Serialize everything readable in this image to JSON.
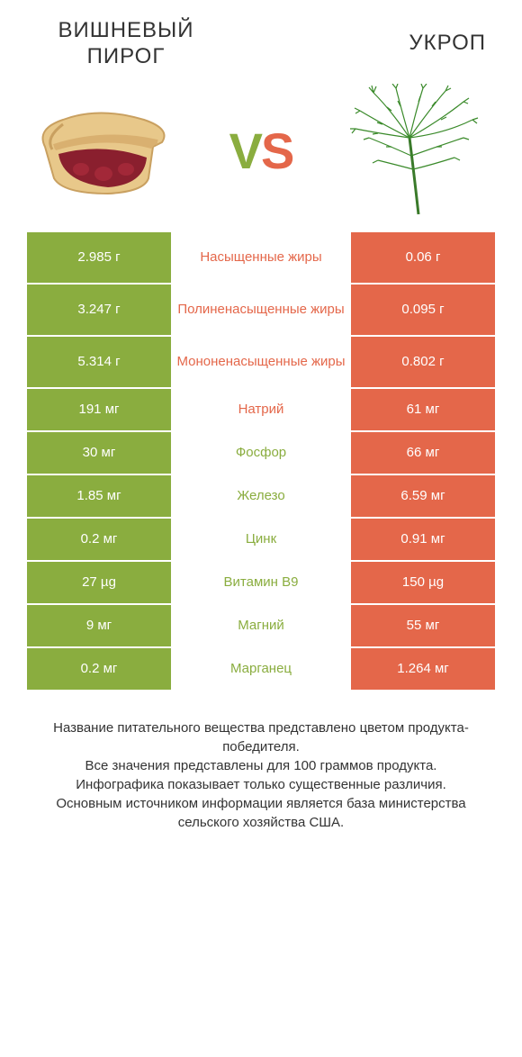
{
  "colors": {
    "left_bg": "#8aad3f",
    "right_bg": "#e4674a",
    "mid_left": "#e4674a",
    "mid_right": "#8aad3f",
    "text": "#333333",
    "white": "#ffffff"
  },
  "header": {
    "left": "ВИШНЕВЫЙ ПИРОГ",
    "right": "УКРОП",
    "vs_v": "V",
    "vs_s": "S"
  },
  "rows": [
    {
      "left": "2.985 г",
      "label": "Насыщенные жиры",
      "right": "0.06 г",
      "winner": "left",
      "tall": true
    },
    {
      "left": "3.247 г",
      "label": "Полиненасыщенные жиры",
      "right": "0.095 г",
      "winner": "left",
      "tall": true
    },
    {
      "left": "5.314 г",
      "label": "Мононенасыщенные жиры",
      "right": "0.802 г",
      "winner": "left",
      "tall": true
    },
    {
      "left": "191 мг",
      "label": "Натрий",
      "right": "61 мг",
      "winner": "left",
      "tall": false
    },
    {
      "left": "30 мг",
      "label": "Фосфор",
      "right": "66 мг",
      "winner": "right",
      "tall": false
    },
    {
      "left": "1.85 мг",
      "label": "Железо",
      "right": "6.59 мг",
      "winner": "right",
      "tall": false
    },
    {
      "left": "0.2 мг",
      "label": "Цинк",
      "right": "0.91 мг",
      "winner": "right",
      "tall": false
    },
    {
      "left": "27 µg",
      "label": "Витамин B9",
      "right": "150 µg",
      "winner": "right",
      "tall": false
    },
    {
      "left": "9 мг",
      "label": "Магний",
      "right": "55 мг",
      "winner": "right",
      "tall": false
    },
    {
      "left": "0.2 мг",
      "label": "Марганец",
      "right": "1.264 мг",
      "winner": "right",
      "tall": false
    }
  ],
  "footer": {
    "l1": "Название питательного вещества представлено цветом продукта-победителя.",
    "l2": "Все значения представлены для 100 граммов продукта.",
    "l3": "Инфографика показывает только существенные различия.",
    "l4": "Основным источником информации является база министерства сельского хозяйства США."
  }
}
